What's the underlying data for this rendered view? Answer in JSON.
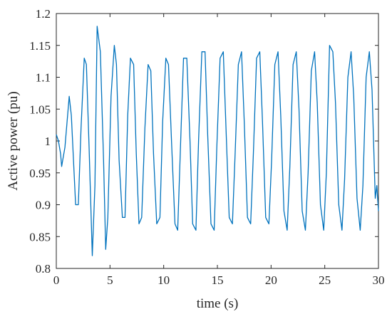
{
  "chart_data": {
    "type": "line",
    "title": "",
    "xlabel": "time (s)",
    "ylabel": "Active power (pu)",
    "xlim": [
      0,
      30
    ],
    "ylim": [
      0.8,
      1.2
    ],
    "xticks": [
      0,
      5,
      10,
      15,
      20,
      25,
      30
    ],
    "yticks": [
      0.8,
      0.85,
      0.9,
      0.95,
      1,
      1.05,
      1.1,
      1.15,
      1.2
    ],
    "xtick_labels": [
      "0",
      "5",
      "10",
      "15",
      "20",
      "25",
      "30"
    ],
    "ytick_labels": [
      "0.8",
      "0.85",
      "0.9",
      "0.95",
      "1",
      "1.05",
      "1.1",
      "1.15",
      "1.2"
    ],
    "grid": false,
    "legend": "none",
    "series": [
      {
        "color": "#0072BD",
        "x": [
          0,
          0.2,
          0.4,
          0.5,
          0.6,
          0.8,
          1.0,
          1.2,
          1.4,
          1.6,
          1.8,
          2.05,
          2.3,
          2.6,
          2.8,
          3.05,
          3.35,
          3.6,
          3.8,
          4.1,
          4.4,
          4.6,
          4.8,
          5.1,
          5.4,
          5.6,
          5.85,
          6.15,
          6.4,
          6.65,
          6.9,
          7.2,
          7.45,
          7.7,
          7.95,
          8.25,
          8.55,
          8.8,
          9.05,
          9.35,
          9.65,
          9.9,
          10.2,
          10.45,
          10.75,
          11.05,
          11.3,
          11.6,
          11.85,
          12.15,
          12.45,
          12.7,
          13.0,
          13.25,
          13.55,
          13.85,
          14.1,
          14.4,
          14.7,
          14.95,
          15.25,
          15.55,
          15.8,
          16.1,
          16.4,
          16.65,
          16.95,
          17.25,
          17.5,
          17.8,
          18.1,
          18.35,
          18.65,
          18.95,
          19.2,
          19.5,
          19.8,
          20.05,
          20.35,
          20.65,
          20.9,
          21.2,
          21.5,
          21.75,
          22.05,
          22.35,
          22.6,
          22.9,
          23.2,
          23.45,
          23.75,
          24.05,
          24.3,
          24.6,
          24.9,
          25.15,
          25.45,
          25.75,
          26.0,
          26.3,
          26.6,
          26.85,
          27.15,
          27.45,
          27.7,
          28.0,
          28.3,
          28.55,
          28.85,
          29.15,
          29.4,
          29.7,
          29.85,
          30.0
        ],
        "y": [
          1.01,
          1.0,
          0.98,
          0.96,
          0.97,
          0.99,
          1.03,
          1.07,
          1.04,
          0.97,
          0.9,
          0.9,
          1.02,
          1.13,
          1.12,
          0.99,
          0.82,
          0.93,
          1.18,
          1.14,
          0.97,
          0.83,
          0.88,
          1.07,
          1.15,
          1.12,
          0.97,
          0.88,
          0.88,
          1.04,
          1.13,
          1.12,
          0.98,
          0.87,
          0.88,
          1.02,
          1.12,
          1.11,
          0.98,
          0.87,
          0.88,
          1.03,
          1.13,
          1.12,
          0.99,
          0.87,
          0.86,
          1.01,
          1.13,
          1.13,
          1.0,
          0.87,
          0.86,
          1.0,
          1.14,
          1.14,
          1.01,
          0.87,
          0.86,
          0.99,
          1.13,
          1.14,
          1.02,
          0.88,
          0.87,
          0.98,
          1.12,
          1.14,
          1.03,
          0.88,
          0.87,
          0.98,
          1.13,
          1.14,
          1.03,
          0.88,
          0.87,
          0.97,
          1.12,
          1.14,
          1.04,
          0.89,
          0.86,
          0.96,
          1.12,
          1.14,
          1.05,
          0.89,
          0.86,
          0.95,
          1.11,
          1.14,
          1.06,
          0.9,
          0.86,
          0.95,
          1.15,
          1.14,
          1.06,
          0.9,
          0.86,
          0.94,
          1.1,
          1.14,
          1.07,
          0.91,
          0.86,
          0.93,
          1.1,
          1.14,
          1.08,
          0.91,
          0.93,
          0.89
        ]
      }
    ]
  }
}
